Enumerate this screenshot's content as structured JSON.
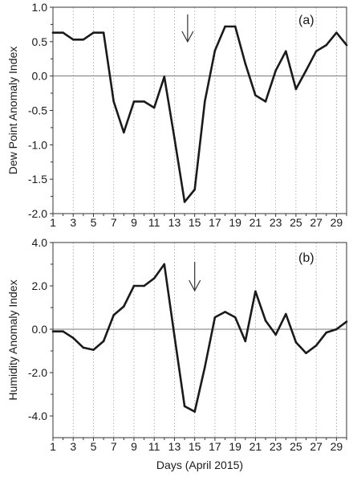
{
  "chart_data": [
    {
      "type": "line",
      "panel_label": "(a)",
      "xlabel": "",
      "ylabel": "Dew Point  Anomaly Index",
      "ylim": [
        -2.0,
        1.0
      ],
      "xlim": [
        1,
        30
      ],
      "yticks": [
        "1.0",
        "0.5",
        "0.0",
        "-0.5",
        "-1.0",
        "-1.5",
        "-2.0"
      ],
      "ytick_values": [
        1.0,
        0.5,
        0.0,
        -0.5,
        -1.0,
        -1.5,
        -2.0
      ],
      "xticks": [
        "1",
        "3",
        "5",
        "7",
        "9",
        "11",
        "13",
        "15",
        "17",
        "19",
        "21",
        "23",
        "25",
        "27",
        "29"
      ],
      "xtick_values": [
        1,
        3,
        5,
        7,
        9,
        11,
        13,
        15,
        17,
        19,
        21,
        23,
        25,
        27,
        29
      ],
      "grid": "vertical dashed",
      "zero_line": true,
      "arrow_at_day": 14.3,
      "series": [
        {
          "x": [
            1,
            2,
            3,
            4,
            5,
            6,
            7,
            8,
            9,
            10,
            11,
            12,
            13,
            14,
            15,
            16,
            17,
            18,
            19,
            20,
            21,
            22,
            23,
            24,
            25,
            26,
            27,
            28,
            29,
            30
          ],
          "values": [
            0.63,
            0.63,
            0.53,
            0.53,
            0.63,
            0.63,
            -0.37,
            -0.82,
            -0.37,
            -0.37,
            -0.46,
            -0.01,
            -0.9,
            -1.83,
            -1.65,
            -0.37,
            0.37,
            0.72,
            0.72,
            0.18,
            -0.28,
            -0.37,
            0.08,
            0.36,
            -0.19,
            0.08,
            0.36,
            0.45,
            0.63,
            0.45
          ]
        }
      ]
    },
    {
      "type": "line",
      "panel_label": "(b)",
      "xlabel": "Days  (April 2015)",
      "ylabel": "Humidity Anomaly Index",
      "ylim": [
        -5.0,
        4.0
      ],
      "xlim": [
        1,
        30
      ],
      "yticks": [
        "4.0",
        "2.0",
        "0.0",
        "-2.0",
        "-4.0"
      ],
      "ytick_values": [
        4.0,
        2.0,
        0.0,
        -2.0,
        -4.0
      ],
      "xticks": [
        "1",
        "3",
        "5",
        "7",
        "9",
        "11",
        "13",
        "15",
        "17",
        "19",
        "21",
        "23",
        "25",
        "27",
        "29"
      ],
      "xtick_values": [
        1,
        3,
        5,
        7,
        9,
        11,
        13,
        15,
        17,
        19,
        21,
        23,
        25,
        27,
        29
      ],
      "grid": "vertical dashed",
      "zero_line": true,
      "arrow_at_day": 15,
      "series": [
        {
          "x": [
            1,
            2,
            3,
            4,
            5,
            6,
            7,
            8,
            9,
            10,
            11,
            12,
            13,
            14,
            15,
            16,
            17,
            18,
            19,
            20,
            21,
            22,
            23,
            24,
            25,
            26,
            27,
            28,
            29,
            30
          ],
          "values": [
            -0.1,
            -0.1,
            -0.4,
            -0.85,
            -0.95,
            -0.55,
            0.65,
            1.05,
            2.0,
            2.0,
            2.35,
            3.0,
            -0.3,
            -3.55,
            -3.8,
            -1.75,
            0.55,
            0.8,
            0.55,
            -0.55,
            1.75,
            0.4,
            -0.25,
            0.7,
            -0.6,
            -1.1,
            -0.75,
            -0.15,
            0.0,
            0.35
          ]
        }
      ]
    }
  ]
}
